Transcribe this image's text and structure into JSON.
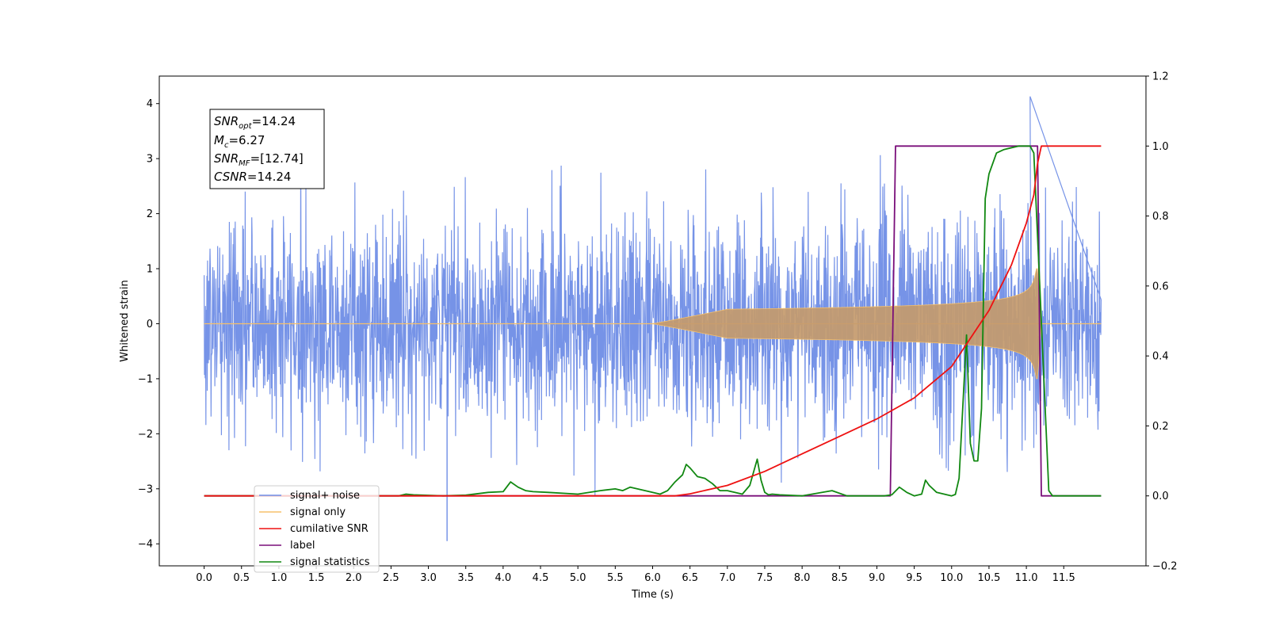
{
  "chart_data": {
    "type": "line",
    "xlabel": "Time (s)",
    "ylabel": "Whitened strain",
    "xlim": [
      -0.6,
      12.6
    ],
    "ylim_left": [
      -4.4,
      4.5
    ],
    "ylim_right": [
      -0.2,
      1.2
    ],
    "x_ticks": [
      "0.0",
      "0.5",
      "1.0",
      "1.5",
      "2.0",
      "2.5",
      "3.0",
      "3.5",
      "4.0",
      "4.5",
      "5.0",
      "5.5",
      "6.0",
      "6.5",
      "7.0",
      "7.5",
      "8.0",
      "8.5",
      "9.0",
      "9.5",
      "10.0",
      "10.5",
      "11.0",
      "11.5"
    ],
    "y_ticks_left": [
      "−4",
      "−3",
      "−2",
      "−1",
      "0",
      "1",
      "2",
      "3",
      "4"
    ],
    "y_ticks_right": [
      "−0.2",
      "0.0",
      "0.2",
      "0.4",
      "0.6",
      "0.8",
      "1.0",
      "1.2"
    ],
    "grid": false,
    "legend_position": "lower-left",
    "annotation": [
      {
        "base": "SNR",
        "sub": "opt",
        "rest": "=14.24"
      },
      {
        "base": "M",
        "sub": "c",
        "rest": "=6.27"
      },
      {
        "base": "SNR",
        "sub": "MF",
        "rest": "=[12.74]"
      },
      {
        "base": "CSNR",
        "sub": "",
        "rest": "=14.24"
      }
    ],
    "series": [
      {
        "name": "signal+ noise",
        "color": "#6f8de6",
        "axis": "left",
        "description_values": {
          "x_start": 0.0,
          "x_end": 12.0,
          "typical_range": [
            -2.5,
            2.5
          ],
          "max": 4.13,
          "min": -3.95
        }
      },
      {
        "name": "signal only",
        "color": "#f5c06b",
        "axis": "left",
        "chirp": {
          "start": 6.0,
          "merger": 11.15,
          "peak_amplitude": 1.0
        }
      },
      {
        "name": "cumilative SNR",
        "color": "#ee1111",
        "axis": "right",
        "x": [
          0.0,
          6.0,
          6.3,
          6.5,
          7.0,
          7.5,
          8.0,
          8.5,
          9.0,
          9.5,
          10.0,
          10.5,
          10.8,
          11.0,
          11.1,
          11.15,
          11.2,
          12.0
        ],
        "y": [
          0.0,
          0.0,
          0.0,
          0.006,
          0.03,
          0.07,
          0.12,
          0.17,
          0.22,
          0.28,
          0.37,
          0.53,
          0.66,
          0.78,
          0.86,
          0.95,
          1.0,
          1.0
        ]
      },
      {
        "name": "label",
        "color": "#7a0f7a",
        "axis": "right",
        "x": [
          0.0,
          9.18,
          9.25,
          11.15,
          11.2,
          12.0
        ],
        "y": [
          0.0,
          0.0,
          1.0,
          1.0,
          0.0,
          0.0
        ]
      },
      {
        "name": "signal statistics",
        "color": "#118811",
        "axis": "right",
        "x": [
          0.0,
          2.6,
          2.7,
          2.8,
          3.2,
          3.5,
          3.8,
          4.0,
          4.1,
          4.2,
          4.3,
          4.4,
          4.6,
          5.0,
          5.3,
          5.5,
          5.6,
          5.7,
          5.9,
          6.1,
          6.2,
          6.3,
          6.4,
          6.45,
          6.5,
          6.6,
          6.7,
          6.8,
          6.9,
          7.0,
          7.2,
          7.3,
          7.4,
          7.45,
          7.5,
          7.55,
          7.6,
          7.7,
          8.0,
          8.4,
          8.6,
          8.8,
          9.0,
          9.1,
          9.2,
          9.3,
          9.4,
          9.5,
          9.6,
          9.65,
          9.7,
          9.8,
          10.0,
          10.05,
          10.1,
          10.2,
          10.25,
          10.3,
          10.35,
          10.4,
          10.45,
          10.5,
          10.6,
          10.7,
          10.9,
          11.05,
          11.1,
          11.2,
          11.3,
          11.35,
          12.0
        ],
        "y": [
          0.0,
          0.0,
          0.005,
          0.003,
          0.0,
          0.002,
          0.01,
          0.012,
          0.04,
          0.025,
          0.015,
          0.012,
          0.01,
          0.005,
          0.015,
          0.02,
          0.015,
          0.025,
          0.015,
          0.005,
          0.015,
          0.04,
          0.06,
          0.09,
          0.08,
          0.055,
          0.05,
          0.035,
          0.015,
          0.015,
          0.005,
          0.03,
          0.105,
          0.045,
          0.01,
          0.003,
          0.005,
          0.003,
          0.0,
          0.015,
          0.0,
          0.0,
          0.0,
          0.0,
          0.003,
          0.025,
          0.01,
          0.0,
          0.005,
          0.045,
          0.03,
          0.01,
          0.0,
          0.004,
          0.05,
          0.46,
          0.15,
          0.1,
          0.1,
          0.25,
          0.85,
          0.92,
          0.98,
          0.99,
          1.0,
          1.0,
          0.98,
          0.5,
          0.015,
          0.0,
          0.0
        ]
      }
    ]
  }
}
